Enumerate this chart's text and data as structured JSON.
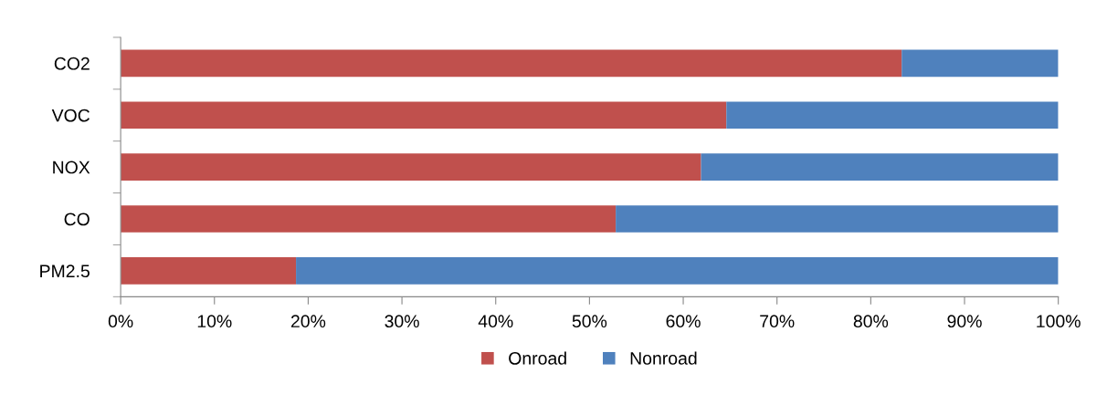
{
  "chart_data": {
    "type": "bar",
    "orientation": "horizontal",
    "stacked": true,
    "categories": [
      "CO2",
      "VOC",
      "NOX",
      "CO",
      "PM2.5"
    ],
    "series": [
      {
        "name": "Onroad",
        "color": "#c0504d",
        "values": [
          83.3,
          64.6,
          61.9,
          52.8,
          18.7
        ]
      },
      {
        "name": "Nonroad",
        "color": "#4f81bd",
        "values": [
          16.7,
          35.4,
          38.1,
          47.2,
          81.3
        ]
      }
    ],
    "xlim": [
      0,
      100
    ],
    "xticks": [
      {
        "value": 0,
        "label": "0%"
      },
      {
        "value": 10,
        "label": "10%"
      },
      {
        "value": 20,
        "label": "20%"
      },
      {
        "value": 30,
        "label": "30%"
      },
      {
        "value": 40,
        "label": "40%"
      },
      {
        "value": 50,
        "label": "50%"
      },
      {
        "value": 60,
        "label": "60%"
      },
      {
        "value": 70,
        "label": "70%"
      },
      {
        "value": 80,
        "label": "80%"
      },
      {
        "value": 90,
        "label": "90%"
      },
      {
        "value": 100,
        "label": "100%"
      }
    ],
    "legend": "bottom",
    "grid": false
  }
}
